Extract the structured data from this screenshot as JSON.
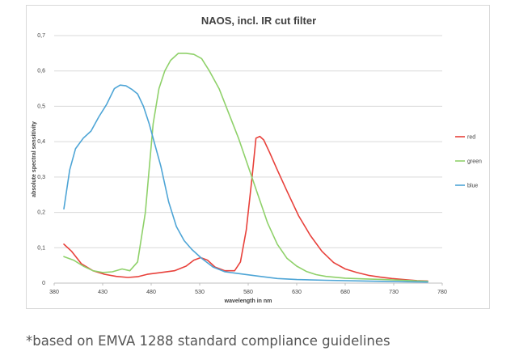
{
  "footnote": "*based on EMVA 1288 standard compliance guidelines",
  "chart_data": {
    "type": "line",
    "title": "NAOS, incl. IR cut filter",
    "xlabel": "wavelength in nm",
    "ylabel": "absolute spectral sensitivity",
    "xlim": [
      380,
      780
    ],
    "ylim": [
      0,
      0.7
    ],
    "xticks": [
      "380",
      "430",
      "480",
      "530",
      "580",
      "630",
      "680",
      "730",
      "780"
    ],
    "yticks": [
      "0",
      "0,1",
      "0,2",
      "0,3",
      "0,4",
      "0,5",
      "0,6",
      "0,7"
    ],
    "grid": true,
    "legend_position": "right",
    "series": [
      {
        "name": "red",
        "color": "#e8413b",
        "x": [
          390,
          398,
          408,
          420,
          432,
          444,
          456,
          466,
          476,
          490,
          504,
          516,
          524,
          531,
          538,
          546,
          556,
          566,
          572,
          578,
          584,
          588,
          592,
          596,
          602,
          610,
          620,
          632,
          644,
          656,
          668,
          680,
          692,
          704,
          716,
          728,
          740,
          754,
          765
        ],
        "values": [
          0.11,
          0.09,
          0.055,
          0.035,
          0.025,
          0.019,
          0.016,
          0.018,
          0.025,
          0.03,
          0.035,
          0.048,
          0.065,
          0.072,
          0.065,
          0.045,
          0.035,
          0.035,
          0.06,
          0.15,
          0.3,
          0.41,
          0.415,
          0.405,
          0.37,
          0.32,
          0.26,
          0.19,
          0.135,
          0.09,
          0.058,
          0.04,
          0.03,
          0.022,
          0.017,
          0.013,
          0.01,
          0.007,
          0.006
        ]
      },
      {
        "name": "green",
        "color": "#8fd16a",
        "x": [
          390,
          400,
          410,
          420,
          430,
          440,
          450,
          458,
          466,
          474,
          482,
          488,
          494,
          500,
          508,
          516,
          524,
          532,
          540,
          550,
          560,
          570,
          580,
          590,
          600,
          610,
          620,
          630,
          640,
          650,
          660,
          680,
          700,
          720,
          740,
          765
        ],
        "values": [
          0.075,
          0.065,
          0.048,
          0.035,
          0.03,
          0.032,
          0.04,
          0.035,
          0.06,
          0.2,
          0.45,
          0.55,
          0.6,
          0.63,
          0.65,
          0.65,
          0.647,
          0.635,
          0.6,
          0.55,
          0.48,
          0.41,
          0.33,
          0.25,
          0.17,
          0.11,
          0.07,
          0.048,
          0.033,
          0.024,
          0.019,
          0.014,
          0.012,
          0.01,
          0.008,
          0.005
        ]
      },
      {
        "name": "blue",
        "color": "#4ea5d6",
        "x": [
          390,
          396,
          402,
          410,
          418,
          426,
          434,
          442,
          448,
          454,
          460,
          466,
          472,
          478,
          484,
          490,
          498,
          506,
          514,
          522,
          532,
          544,
          556,
          570,
          590,
          610,
          630,
          660,
          700,
          740,
          765
        ],
        "values": [
          0.21,
          0.32,
          0.38,
          0.41,
          0.43,
          0.47,
          0.505,
          0.55,
          0.56,
          0.558,
          0.548,
          0.535,
          0.5,
          0.45,
          0.39,
          0.33,
          0.23,
          0.16,
          0.12,
          0.095,
          0.07,
          0.045,
          0.032,
          0.027,
          0.02,
          0.013,
          0.01,
          0.008,
          0.006,
          0.004,
          0.003
        ]
      }
    ]
  }
}
